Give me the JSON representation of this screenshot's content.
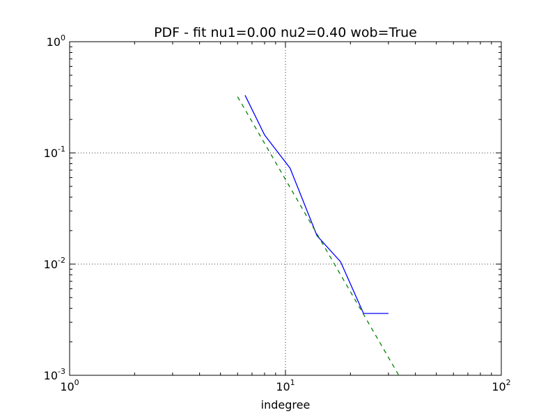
{
  "chart_data": {
    "type": "line",
    "title": "PDF - fit nu1=0.00 nu2=0.40 wob=True",
    "xlabel": "indegree",
    "ylabel": "",
    "xscale": "log",
    "yscale": "log",
    "xlim": [
      1,
      100
    ],
    "ylim": [
      0.001,
      1
    ],
    "grid": true,
    "x_ticks": [
      {
        "base": "10",
        "exp": "0",
        "value": 1
      },
      {
        "base": "10",
        "exp": "1",
        "value": 10
      },
      {
        "base": "10",
        "exp": "2",
        "value": 100
      }
    ],
    "y_ticks": [
      {
        "base": "10",
        "exp": "-3",
        "value": 0.001
      },
      {
        "base": "10",
        "exp": "-2",
        "value": 0.01
      },
      {
        "base": "10",
        "exp": "-1",
        "value": 0.1
      },
      {
        "base": "10",
        "exp": "0",
        "value": 1
      }
    ],
    "series": [
      {
        "style": "solid",
        "color": "#0000ff",
        "x": [
          6.5,
          8.0,
          10.5,
          14.0,
          18.0,
          23.0,
          30.0
        ],
        "y": [
          0.33,
          0.145,
          0.073,
          0.018,
          0.0105,
          0.0036,
          0.0036
        ]
      },
      {
        "style": "dashed",
        "color": "#008000",
        "x": [
          6.0,
          33.5
        ],
        "y": [
          0.32,
          0.001
        ]
      }
    ]
  }
}
